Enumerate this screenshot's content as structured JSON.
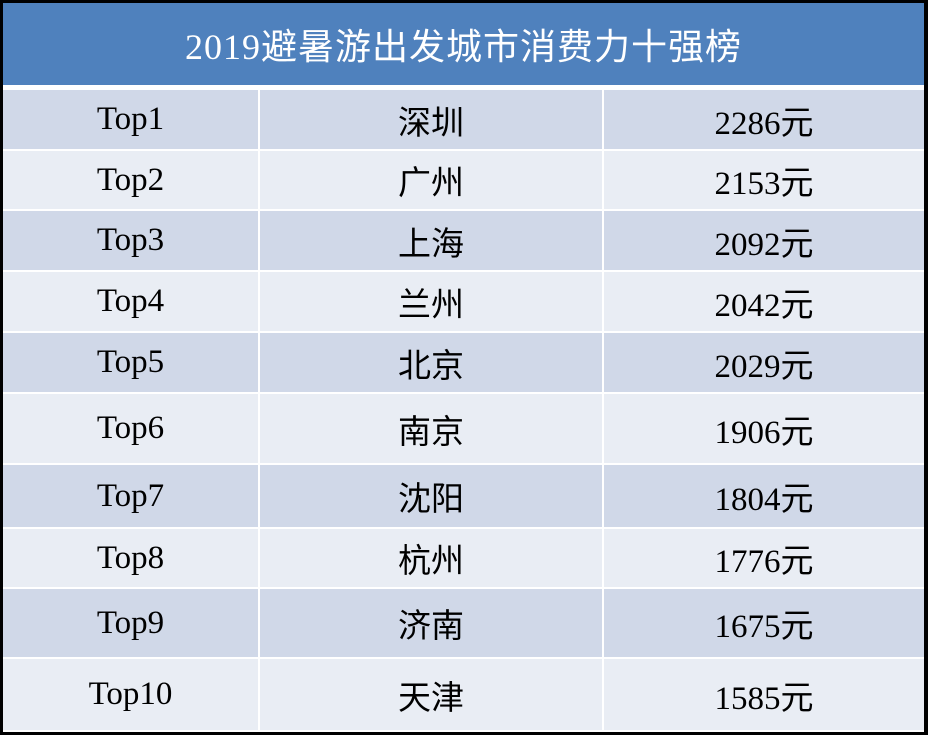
{
  "table": {
    "title": "2019避暑游出发城市消费力十强榜",
    "rows": [
      [
        "Top1",
        "深圳",
        "2286元"
      ],
      [
        "Top2",
        "广州",
        "2153元"
      ],
      [
        "Top3",
        "上海",
        "2092元"
      ],
      [
        "Top4",
        "兰州",
        "2042元"
      ],
      [
        "Top5",
        "北京",
        "2029元"
      ],
      [
        "Top6",
        "南京",
        "1906元"
      ],
      [
        "Top7",
        "沈阳",
        "1804元"
      ],
      [
        "Top8",
        "杭州",
        "1776元"
      ],
      [
        "Top9",
        "济南",
        "1675元"
      ],
      [
        "Top10",
        "天津",
        "1585元"
      ]
    ]
  }
}
